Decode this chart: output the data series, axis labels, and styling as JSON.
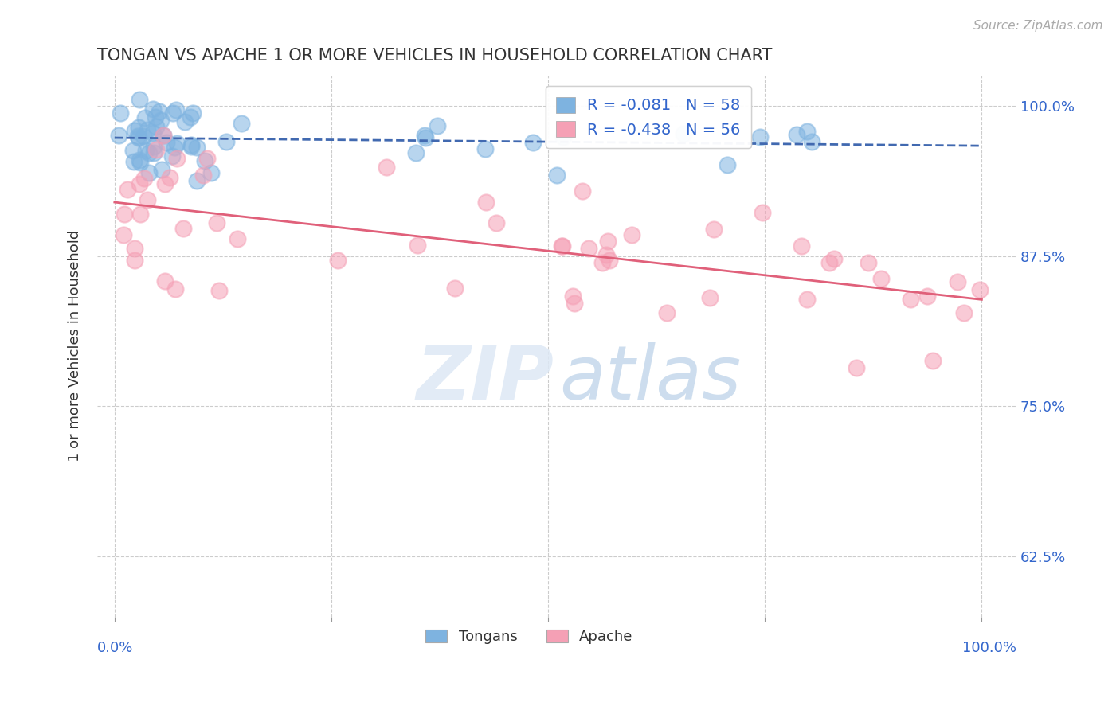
{
  "title": "TONGAN VS APACHE 1 OR MORE VEHICLES IN HOUSEHOLD CORRELATION CHART",
  "source": "Source: ZipAtlas.com",
  "ylabel": "1 or more Vehicles in Household",
  "yticks": [
    0.625,
    0.75,
    0.875,
    1.0
  ],
  "ytick_labels": [
    "62.5%",
    "75.0%",
    "87.5%",
    "100.0%"
  ],
  "legend_blue_label": "R = -0.081   N = 58",
  "legend_pink_label": "R = -0.438   N = 56",
  "blue_color": "#7eb3e0",
  "pink_color": "#f5a0b5",
  "blue_line_color": "#4169b0",
  "pink_line_color": "#e0607a",
  "background_color": "#ffffff",
  "blue_R": -0.081,
  "blue_N": 58,
  "pink_R": -0.438,
  "pink_N": 56
}
